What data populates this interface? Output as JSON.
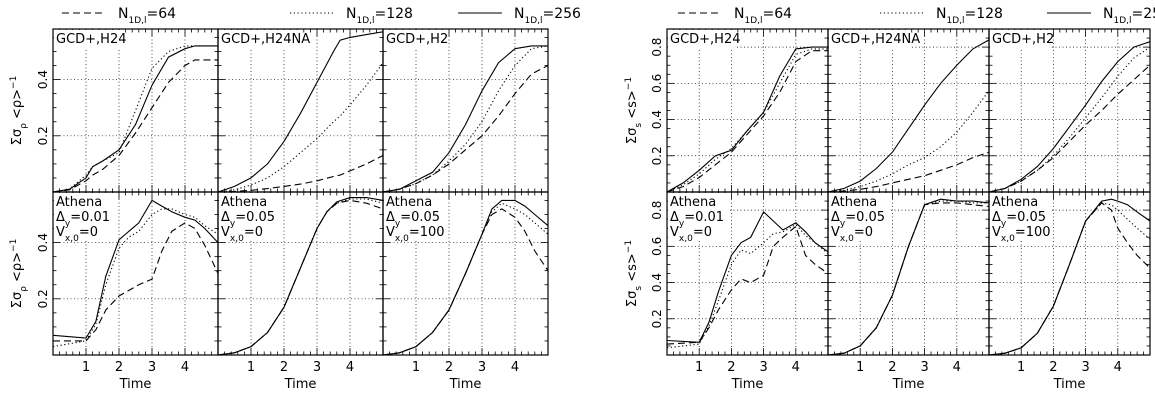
{
  "legend": [
    {
      "base": "N",
      "sub": "1D,l",
      "value": "=64",
      "dash": "dashed"
    },
    {
      "base": "N",
      "sub": "1D,l",
      "value": "=128",
      "dash": "dotted"
    },
    {
      "base": "N",
      "sub": "1D,l",
      "value": "=256",
      "dash": "solid"
    }
  ],
  "xlabel": "Time",
  "xticks": [
    1,
    2,
    3,
    4
  ],
  "chart_data": [
    {
      "type": "line",
      "quantity": "rho",
      "ylabel": {
        "top": {
          "pre": "Σσ",
          "sub": "ρ",
          "post": " <ρ>",
          "sup": "−1"
        },
        "bottom": {
          "pre": "Σσ",
          "sub": "ρ",
          "post": " <ρ>",
          "sup": "−1"
        }
      },
      "xlim": [
        0,
        5
      ],
      "ylim": [
        0,
        0.58
      ],
      "yticks": [
        0.2,
        0.4
      ],
      "grid": true,
      "series_names": [
        "N1D,l=64",
        "N1D,l=128",
        "N1D,l=256"
      ],
      "panels": [
        {
          "row": 0,
          "col": 0,
          "label": [
            "GCD+,H24"
          ],
          "x": [
            0,
            0.5,
            1,
            1.2,
            1.5,
            2,
            2.5,
            3,
            3.5,
            4,
            4.3,
            4.6,
            5
          ],
          "series": [
            [
              0,
              0.008,
              0.04,
              0.06,
              0.08,
              0.13,
              0.21,
              0.3,
              0.39,
              0.45,
              0.47,
              0.47,
              0.47
            ],
            [
              0,
              0.01,
              0.06,
              0.09,
              0.11,
              0.14,
              0.29,
              0.44,
              0.5,
              0.52,
              0.52,
              0.52,
              0.52
            ],
            [
              0,
              0.01,
              0.05,
              0.09,
              0.11,
              0.15,
              0.24,
              0.38,
              0.48,
              0.51,
              0.52,
              0.52,
              0.52
            ]
          ]
        },
        {
          "row": 0,
          "col": 1,
          "label": [
            "GCD+,H24NA"
          ],
          "x": [
            0,
            0.5,
            1,
            1.5,
            2,
            2.5,
            3,
            3.5,
            3.7,
            4,
            4.5,
            5
          ],
          "series": [
            [
              0,
              0.002,
              0.006,
              0.012,
              0.02,
              0.028,
              0.04,
              0.055,
              0.06,
              0.075,
              0.1,
              0.13
            ],
            [
              0,
              0.008,
              0.025,
              0.05,
              0.09,
              0.14,
              0.19,
              0.25,
              0.27,
              0.31,
              0.38,
              0.46
            ],
            [
              0,
              0.02,
              0.05,
              0.1,
              0.18,
              0.28,
              0.39,
              0.5,
              0.54,
              0.55,
              0.56,
              0.57
            ]
          ]
        },
        {
          "row": 0,
          "col": 2,
          "label": [
            "GCD+,H2"
          ],
          "x": [
            0,
            0.5,
            1,
            1.5,
            2,
            2.5,
            3,
            3.5,
            4,
            4.5,
            5
          ],
          "series": [
            [
              0,
              0.01,
              0.03,
              0.06,
              0.1,
              0.15,
              0.2,
              0.27,
              0.35,
              0.42,
              0.45
            ],
            [
              0,
              0.01,
              0.03,
              0.06,
              0.11,
              0.17,
              0.25,
              0.36,
              0.45,
              0.51,
              0.52
            ],
            [
              0,
              0.01,
              0.04,
              0.07,
              0.14,
              0.24,
              0.36,
              0.46,
              0.51,
              0.52,
              0.52
            ]
          ]
        },
        {
          "row": 1,
          "col": 0,
          "label": [
            "Athena",
            "Δy=0.01",
            "Vx,0=0"
          ],
          "x": [
            0,
            1,
            1.3,
            1.6,
            2,
            2.3,
            2.6,
            3,
            3.3,
            3.6,
            4,
            4.3,
            4.6,
            5
          ],
          "series": [
            [
              0.05,
              0.05,
              0.09,
              0.16,
              0.21,
              0.23,
              0.25,
              0.27,
              0.37,
              0.44,
              0.47,
              0.45,
              0.39,
              0.29
            ],
            [
              0.03,
              0.05,
              0.11,
              0.25,
              0.38,
              0.42,
              0.44,
              0.5,
              0.52,
              0.52,
              0.5,
              0.49,
              0.46,
              0.43
            ],
            [
              0.07,
              0.06,
              0.12,
              0.28,
              0.41,
              0.44,
              0.47,
              0.55,
              0.53,
              0.51,
              0.49,
              0.48,
              0.45,
              0.4
            ]
          ]
        },
        {
          "row": 1,
          "col": 1,
          "label": [
            "Athena",
            "Δy=0.05",
            "Vx,0=0"
          ],
          "x": [
            0,
            0.5,
            1,
            1.5,
            2,
            2.5,
            3,
            3.3,
            3.6,
            4,
            4.5,
            5
          ],
          "series": [
            [
              0,
              0.008,
              0.03,
              0.08,
              0.17,
              0.31,
              0.45,
              0.51,
              0.54,
              0.55,
              0.54,
              0.52
            ],
            [
              0,
              0.008,
              0.03,
              0.08,
              0.17,
              0.31,
              0.45,
              0.51,
              0.54,
              0.555,
              0.555,
              0.54
            ],
            [
              0,
              0.008,
              0.03,
              0.08,
              0.17,
              0.31,
              0.45,
              0.51,
              0.545,
              0.56,
              0.56,
              0.55
            ]
          ]
        },
        {
          "row": 1,
          "col": 2,
          "label": [
            "Athena",
            "Δy=0.05",
            "Vx,0=100"
          ],
          "x": [
            0,
            0.5,
            1,
            1.5,
            2,
            2.5,
            3,
            3.3,
            3.6,
            4,
            4.3,
            4.6,
            5
          ],
          "series": [
            [
              0,
              0.008,
              0.03,
              0.08,
              0.16,
              0.29,
              0.43,
              0.5,
              0.52,
              0.49,
              0.44,
              0.37,
              0.3
            ],
            [
              0,
              0.008,
              0.03,
              0.08,
              0.16,
              0.29,
              0.43,
              0.51,
              0.54,
              0.52,
              0.5,
              0.47,
              0.43
            ],
            [
              0,
              0.008,
              0.03,
              0.08,
              0.16,
              0.29,
              0.43,
              0.52,
              0.55,
              0.55,
              0.53,
              0.5,
              0.46
            ]
          ]
        }
      ]
    },
    {
      "type": "line",
      "quantity": "s",
      "ylabel": {
        "top": {
          "pre": "Σσ",
          "sub": "s",
          "post": " <s>",
          "sup": "−1"
        },
        "bottom": {
          "pre": "Σσ",
          "sub": "s",
          "post": " <s>",
          "sup": "−1"
        }
      },
      "xlim": [
        0,
        5
      ],
      "ylim": [
        0,
        0.9
      ],
      "yticks": [
        0.2,
        0.4,
        0.6,
        0.8
      ],
      "grid": true,
      "series_names": [
        "N1D,l=64",
        "N1D,l=128",
        "N1D,l=256"
      ],
      "panels": [
        {
          "row": 0,
          "col": 0,
          "label": [
            "GCD+,H24"
          ],
          "x": [
            0,
            0.5,
            1,
            1.5,
            2,
            2.5,
            3,
            3.5,
            4,
            4.5,
            5
          ],
          "series": [
            [
              0,
              0.03,
              0.08,
              0.15,
              0.22,
              0.32,
              0.42,
              0.55,
              0.72,
              0.78,
              0.78
            ],
            [
              0,
              0.04,
              0.1,
              0.18,
              0.24,
              0.34,
              0.44,
              0.6,
              0.76,
              0.79,
              0.79
            ],
            [
              0,
              0.05,
              0.12,
              0.2,
              0.23,
              0.34,
              0.44,
              0.64,
              0.79,
              0.8,
              0.8
            ]
          ]
        },
        {
          "row": 0,
          "col": 1,
          "label": [
            "GCD+,H24NA"
          ],
          "x": [
            0,
            0.5,
            1,
            1.5,
            2,
            2.5,
            3,
            3.5,
            4,
            4.5,
            5
          ],
          "series": [
            [
              0,
              0.005,
              0.015,
              0.03,
              0.05,
              0.07,
              0.09,
              0.12,
              0.15,
              0.19,
              0.22
            ],
            [
              0,
              0.01,
              0.03,
              0.06,
              0.1,
              0.15,
              0.19,
              0.25,
              0.33,
              0.44,
              0.56
            ],
            [
              0,
              0.02,
              0.06,
              0.13,
              0.22,
              0.35,
              0.48,
              0.6,
              0.7,
              0.79,
              0.84
            ]
          ]
        },
        {
          "row": 0,
          "col": 2,
          "label": [
            "GCD+,H2"
          ],
          "x": [
            0,
            0.5,
            1,
            1.5,
            2,
            2.5,
            3,
            3.5,
            4,
            4.5,
            5
          ],
          "series": [
            [
              0,
              0.02,
              0.06,
              0.12,
              0.19,
              0.28,
              0.37,
              0.45,
              0.54,
              0.62,
              0.7
            ],
            [
              0,
              0.02,
              0.06,
              0.12,
              0.2,
              0.3,
              0.41,
              0.52,
              0.64,
              0.74,
              0.8
            ],
            [
              0,
              0.02,
              0.07,
              0.14,
              0.24,
              0.36,
              0.48,
              0.61,
              0.72,
              0.8,
              0.83
            ]
          ]
        },
        {
          "row": 1,
          "col": 0,
          "label": [
            "Athena",
            "Δy=0.01",
            "Vx,0=0"
          ],
          "x": [
            0,
            1,
            1.3,
            1.6,
            2,
            2.3,
            2.6,
            3,
            3.3,
            3.6,
            4,
            4.3,
            4.6,
            5
          ],
          "series": [
            [
              0.06,
              0.07,
              0.15,
              0.25,
              0.36,
              0.42,
              0.4,
              0.44,
              0.6,
              0.65,
              0.71,
              0.55,
              0.5,
              0.45
            ],
            [
              0.04,
              0.06,
              0.16,
              0.3,
              0.5,
              0.58,
              0.56,
              0.62,
              0.67,
              0.68,
              0.72,
              0.66,
              0.62,
              0.56
            ],
            [
              0.08,
              0.07,
              0.18,
              0.35,
              0.55,
              0.62,
              0.65,
              0.79,
              0.74,
              0.69,
              0.73,
              0.68,
              0.62,
              0.57
            ]
          ]
        },
        {
          "row": 1,
          "col": 1,
          "label": [
            "Athena",
            "Δy=0.05",
            "Vx,0=0"
          ],
          "x": [
            0,
            0.5,
            1,
            1.5,
            2,
            2.5,
            3,
            3.5,
            4,
            4.5,
            5
          ],
          "series": [
            [
              0,
              0.01,
              0.05,
              0.15,
              0.33,
              0.6,
              0.83,
              0.84,
              0.84,
              0.83,
              0.82
            ],
            [
              0,
              0.01,
              0.05,
              0.15,
              0.33,
              0.6,
              0.83,
              0.85,
              0.85,
              0.84,
              0.84
            ],
            [
              0,
              0.01,
              0.05,
              0.15,
              0.33,
              0.6,
              0.83,
              0.86,
              0.85,
              0.85,
              0.84
            ]
          ]
        },
        {
          "row": 1,
          "col": 2,
          "label": [
            "Athena",
            "Δy=0.05",
            "Vx,0=100"
          ],
          "x": [
            0,
            0.5,
            1,
            1.5,
            2,
            2.5,
            3,
            3.5,
            3.8,
            4,
            4.3,
            4.6,
            5
          ],
          "series": [
            [
              0,
              0.01,
              0.04,
              0.12,
              0.27,
              0.5,
              0.74,
              0.84,
              0.8,
              0.7,
              0.62,
              0.55,
              0.48
            ],
            [
              0,
              0.01,
              0.04,
              0.12,
              0.27,
              0.5,
              0.74,
              0.84,
              0.83,
              0.8,
              0.75,
              0.7,
              0.64
            ],
            [
              0,
              0.01,
              0.04,
              0.12,
              0.27,
              0.5,
              0.74,
              0.85,
              0.86,
              0.85,
              0.83,
              0.79,
              0.74
            ]
          ]
        }
      ]
    }
  ]
}
